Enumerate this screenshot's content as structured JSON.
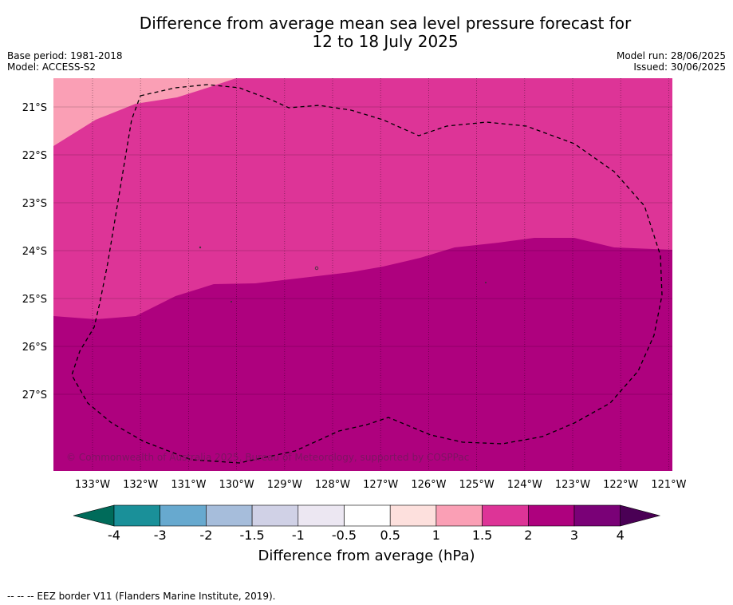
{
  "title_line1": "Difference from average mean sea level pressure forecast for",
  "title_line2": "12 to 18 July 2025",
  "base_period": "Base period: 1981-2018",
  "model": "Model: ACCESS-S2",
  "model_run": "Model run: 28/06/2025",
  "issued": "Issued: 30/06/2025",
  "copyright": "© Commonwealth of Australia 2025, Bureau of Meteorology, supported by COSPPac",
  "lat_labels": [
    "21°S",
    "22°S",
    "23°S",
    "24°S",
    "25°S",
    "26°S",
    "27°S"
  ],
  "lon_labels": [
    "133°W",
    "132°W",
    "131°W",
    "130°W",
    "129°W",
    "128°W",
    "127°W",
    "126°W",
    "125°W",
    "124°W",
    "123°W",
    "122°W",
    "121°W"
  ],
  "colorbar": {
    "title": "Difference from average (hPa)",
    "tick_labels": [
      "-4",
      "-3",
      "-2",
      "-1.5",
      "-1",
      "-0.5",
      "0.5",
      "1",
      "1.5",
      "2",
      "3",
      "4"
    ],
    "below_color": "#006b5a",
    "above_color": "#4a0055",
    "bins": [
      {
        "from": -4,
        "to": -3,
        "color": "#1a9099"
      },
      {
        "from": -3,
        "to": -2,
        "color": "#67a9cf"
      },
      {
        "from": -2,
        "to": -1.5,
        "color": "#a6bddb"
      },
      {
        "from": -1.5,
        "to": -1,
        "color": "#d0d1e6"
      },
      {
        "from": -1,
        "to": -0.5,
        "color": "#ece7f2"
      },
      {
        "from": -0.5,
        "to": 0.5,
        "color": "#ffffff"
      },
      {
        "from": 0.5,
        "to": 1,
        "color": "#fde0dd"
      },
      {
        "from": 1,
        "to": 1.5,
        "color": "#fa9fb5"
      },
      {
        "from": 1.5,
        "to": 2,
        "color": "#dd3497"
      },
      {
        "from": 2,
        "to": 3,
        "color": "#ae017e"
      },
      {
        "from": 3,
        "to": 4,
        "color": "#7a0177"
      }
    ]
  },
  "footer": "--  --  -- EEZ border V11 (Flanders Marine Institute, 2019).",
  "chart_data": {
    "type": "heatmap",
    "field": "mean sea level pressure anomaly (hPa)",
    "lon_range": [
      "133.9°W",
      "120.9°W"
    ],
    "lat_range": [
      "20.4°S",
      "28.6°S"
    ],
    "regions": [
      {
        "range_hPa": [
          1,
          1.5
        ],
        "area": "north-west corner"
      },
      {
        "range_hPa": [
          1.5,
          2
        ],
        "area": "northern band"
      },
      {
        "range_hPa": [
          2,
          3
        ],
        "area": "southern half"
      }
    ],
    "colors": {
      "1-1.5": "#fa9fb5",
      "1.5-2": "#dd3497",
      "2-3": "#ae017e"
    }
  }
}
